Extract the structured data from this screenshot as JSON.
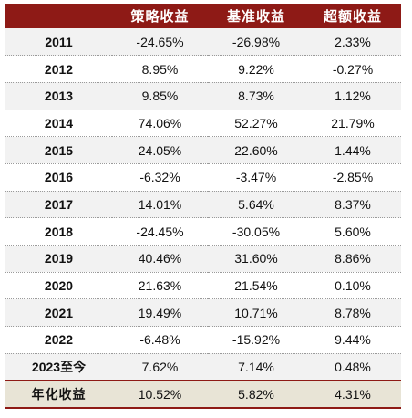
{
  "table": {
    "headers": [
      "",
      "策略收益",
      "基准收益",
      "超额收益"
    ],
    "rows": [
      [
        "2011",
        "-24.65%",
        "-26.98%",
        "2.33%"
      ],
      [
        "2012",
        "8.95%",
        "9.22%",
        "-0.27%"
      ],
      [
        "2013",
        "9.85%",
        "8.73%",
        "1.12%"
      ],
      [
        "2014",
        "74.06%",
        "52.27%",
        "21.79%"
      ],
      [
        "2015",
        "24.05%",
        "22.60%",
        "1.44%"
      ],
      [
        "2016",
        "-6.32%",
        "-3.47%",
        "-2.85%"
      ],
      [
        "2017",
        "14.01%",
        "5.64%",
        "8.37%"
      ],
      [
        "2018",
        "-24.45%",
        "-30.05%",
        "5.60%"
      ],
      [
        "2019",
        "40.46%",
        "31.60%",
        "8.86%"
      ],
      [
        "2020",
        "21.63%",
        "21.54%",
        "0.10%"
      ],
      [
        "2021",
        "19.49%",
        "10.71%",
        "8.78%"
      ],
      [
        "2022",
        "-6.48%",
        "-15.92%",
        "9.44%"
      ],
      [
        "2023至今",
        "7.62%",
        "7.14%",
        "0.48%"
      ]
    ],
    "footer": [
      "年化收益",
      "10.52%",
      "5.82%",
      "4.31%"
    ]
  },
  "colors": {
    "header_bg": "#8e1a16",
    "header_text": "#ffffff",
    "stripe_bg": "#f2f2f2",
    "footer_bg": "#e8e4d6"
  }
}
